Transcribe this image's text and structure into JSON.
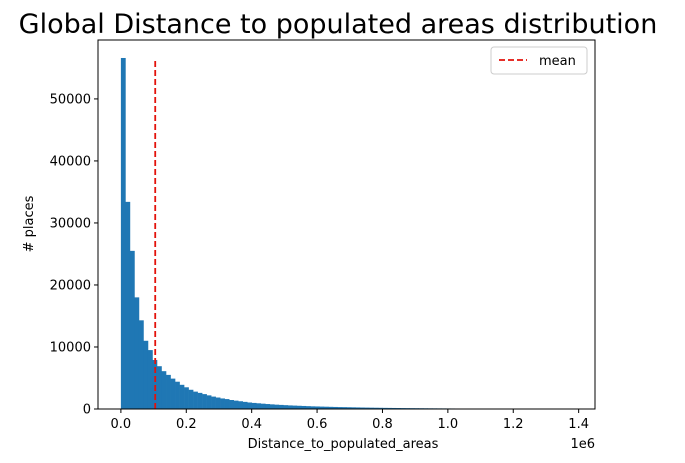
{
  "chart_data": {
    "type": "bar",
    "title": "Global Distance to populated areas distribution",
    "xlabel": "Distance_to_populated_areas",
    "ylabel": "# places",
    "x_offset_label": "1e6",
    "xlim": [
      -0.07,
      1.45
    ],
    "ylim": [
      0,
      59500
    ],
    "x_ticks": [
      0.0,
      0.2,
      0.4,
      0.6,
      0.8,
      1.0,
      1.2,
      1.4
    ],
    "x_tick_labels": [
      "0.0",
      "0.2",
      "0.4",
      "0.6",
      "0.8",
      "1.0",
      "1.2",
      "1.4"
    ],
    "y_ticks": [
      0,
      10000,
      20000,
      30000,
      40000,
      50000
    ],
    "y_tick_labels": [
      "0",
      "10000",
      "20000",
      "30000",
      "40000",
      "50000"
    ],
    "bin_start": 0.0,
    "bin_width": 0.0138,
    "values": [
      56600,
      33400,
      25500,
      18000,
      14300,
      11000,
      9500,
      7900,
      6900,
      6100,
      5500,
      4900,
      4400,
      3900,
      3500,
      3100,
      2800,
      2600,
      2400,
      2200,
      2000,
      1850,
      1700,
      1600,
      1450,
      1350,
      1250,
      1150,
      1050,
      980,
      920,
      860,
      800,
      750,
      700,
      660,
      620,
      580,
      550,
      520,
      490,
      460,
      430,
      410,
      390,
      370,
      350,
      330,
      310,
      300,
      285,
      270,
      255,
      240,
      228,
      216,
      205,
      195,
      185,
      176,
      167,
      158,
      150,
      143,
      136,
      130,
      124,
      118,
      112,
      107,
      102,
      97,
      92,
      87,
      82,
      77,
      72,
      68,
      64,
      60,
      56,
      52,
      48,
      45,
      42,
      39,
      36,
      33,
      30,
      27,
      24,
      21,
      18,
      15,
      12,
      10,
      8,
      6,
      5,
      4
    ],
    "mean": {
      "label": "mean",
      "x": 0.105,
      "y_max": 56600,
      "color": "#e3120b",
      "style": "dashed"
    },
    "bar_color": "#1f77b4",
    "grid": false,
    "legend_position": "top-right"
  }
}
